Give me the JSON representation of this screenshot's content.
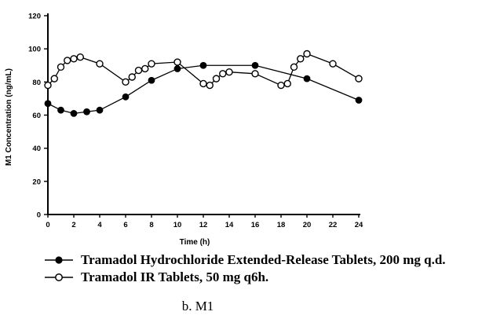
{
  "figure": {
    "caption": "b. M1"
  },
  "chart_data": {
    "type": "line",
    "title": "",
    "xlabel": "Time (h)",
    "ylabel": "M1 Concentration (ng/mL)",
    "xlim": [
      0,
      24
    ],
    "ylim": [
      0,
      120
    ],
    "x_ticks": [
      0,
      2,
      4,
      6,
      8,
      10,
      12,
      14,
      16,
      18,
      20,
      22,
      24
    ],
    "y_ticks": [
      0,
      20,
      40,
      60,
      80,
      100,
      120
    ],
    "grid": false,
    "legend_position": "below-chart",
    "line_color": "#000000",
    "background_color": "#ffffff",
    "series": [
      {
        "name": "Tramadol Hydrochloride Extended-Release Tablets, 200 mg q.d.",
        "marker": "filled-circle",
        "color": "#000000",
        "x": [
          0,
          1,
          2,
          3,
          4,
          6,
          8,
          10,
          12,
          16,
          20,
          24
        ],
        "y": [
          67,
          63,
          61,
          62,
          63,
          71,
          81,
          88,
          90,
          90,
          82,
          69
        ]
      },
      {
        "name": "Tramadol IR Tablets, 50 mg q6h.",
        "marker": "open-circle",
        "color": "#000000",
        "x": [
          0,
          0.5,
          1,
          1.5,
          2,
          2.5,
          4,
          6,
          6.5,
          7,
          7.5,
          8,
          10,
          12,
          12.5,
          13,
          13.5,
          14,
          16,
          18,
          18.5,
          19,
          19.5,
          20,
          22,
          24
        ],
        "y": [
          78,
          82,
          89,
          93,
          94,
          95,
          91,
          80,
          83,
          87,
          88,
          91,
          92,
          79,
          78,
          82,
          85,
          86,
          85,
          78,
          79,
          89,
          94,
          97,
          91,
          82
        ]
      }
    ]
  }
}
